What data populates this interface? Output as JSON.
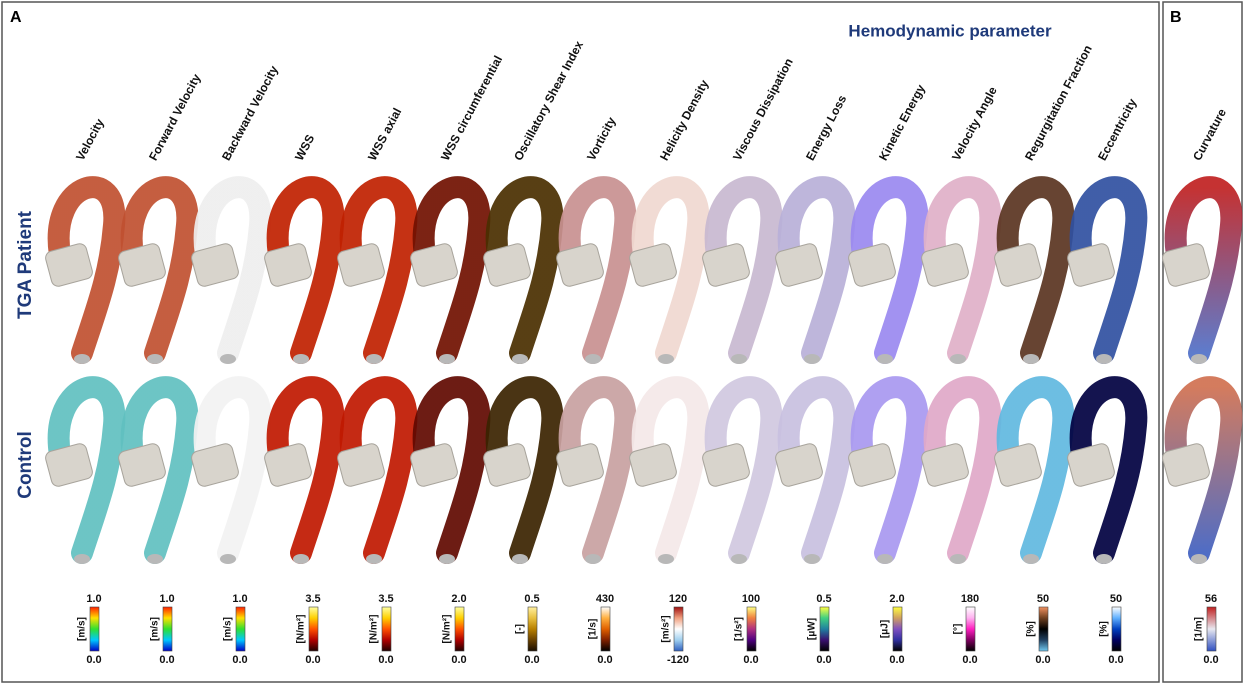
{
  "panel_a": {
    "label": "A",
    "heading": "Hemodynamic parameter",
    "rows": [
      "TGA Patient",
      "Control"
    ],
    "columns": [
      {
        "name": "Velocity",
        "max": "1.0",
        "unit": "[m/s]",
        "min": "0.0"
      },
      {
        "name": "Forward Velocity",
        "max": "1.0",
        "unit": "[m/s]",
        "min": "0.0"
      },
      {
        "name": "Backward Velocity",
        "max": "1.0",
        "unit": "[m/s]",
        "min": "0.0"
      },
      {
        "name": "WSS",
        "max": "3.5",
        "unit": "[N/m²]",
        "min": "0.0"
      },
      {
        "name": "WSS axial",
        "max": "3.5",
        "unit": "[N/m²]",
        "min": "0.0"
      },
      {
        "name": "WSS circumferential",
        "max": "2.0",
        "unit": "[N/m²]",
        "min": "0.0"
      },
      {
        "name": "Oscillatory Shear Index",
        "max": "0.5",
        "unit": "[-]",
        "min": "0.0"
      },
      {
        "name": "Vorticity",
        "max": "430",
        "unit": "[1/s]",
        "min": "0.0"
      },
      {
        "name": "Helicity Density",
        "max": "120",
        "unit": "[m/s²]",
        "min": "-120"
      },
      {
        "name": "Viscous Dissipation",
        "max": "100",
        "unit": "[1/s²]",
        "min": "0.0"
      },
      {
        "name": "Energy Loss",
        "max": "0.5",
        "unit": "[μW]",
        "min": "0.0"
      },
      {
        "name": "Kinetic Energy",
        "max": "2.0",
        "unit": "[μJ]",
        "min": "0.0"
      },
      {
        "name": "Velocity Angle",
        "max": "180",
        "unit": "[°]",
        "min": "0.0"
      },
      {
        "name": "Regurgitation Fraction",
        "max": "50",
        "unit": "[%]",
        "min": "0.0"
      },
      {
        "name": "Eccentricity",
        "max": "50",
        "unit": "[%]",
        "min": "0.0"
      }
    ]
  },
  "panel_b": {
    "label": "B",
    "columns": [
      {
        "name": "Curvature",
        "max": "56",
        "unit": "[1/m]",
        "min": "0.0"
      }
    ]
  }
}
